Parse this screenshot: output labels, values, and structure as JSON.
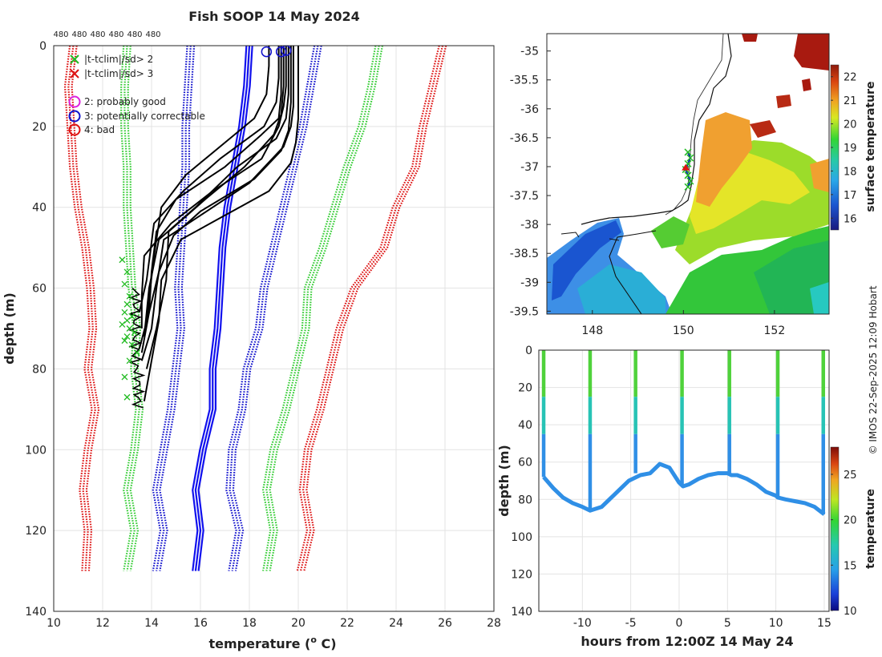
{
  "chart_data": [
    {
      "type": "line",
      "title": "Fish SOOP 14 May 2024",
      "xlabel": "temperature (",
      "xlabel_sup": "o",
      "xlabel_end": " C)",
      "ylabel": "depth (m)",
      "xlim": [
        10,
        28
      ],
      "ylim": [
        0,
        140
      ],
      "xticks": [
        10,
        12,
        14,
        16,
        18,
        20,
        22,
        24,
        26,
        28
      ],
      "yticks": [
        0,
        20,
        40,
        60,
        80,
        100,
        120,
        140
      ],
      "top_labels": [
        "480",
        "480",
        "480",
        "480",
        "480",
        "480"
      ],
      "legend_markers": [
        {
          "symbol": "x",
          "label": "|t-tclim|/sd> 2",
          "color": "#22bb22"
        },
        {
          "symbol": "x",
          "label": "|t-tclim|/sd> 3",
          "color": "#dd1111"
        }
      ],
      "legend_flags": [
        {
          "symbol": "o",
          "label": "2: probably good",
          "color": "#dd22dd"
        },
        {
          "symbol": "o",
          "label": "3: potentially correctable",
          "color": "#1111cc"
        },
        {
          "symbol": "o",
          "label": "4: bad",
          "color": "#dd1111"
        }
      ],
      "clim_depths": [
        0,
        10,
        20,
        30,
        40,
        50,
        60,
        70,
        80,
        90,
        100,
        110,
        120,
        130
      ],
      "climatology": [
        {
          "name": "mean-3sd",
          "color": "#dd1111",
          "style": "dotted",
          "values": [
            10.8,
            10.6,
            10.7,
            10.8,
            11.0,
            11.3,
            11.5,
            11.6,
            11.4,
            11.7,
            11.4,
            11.2,
            11.4,
            11.3
          ]
        },
        {
          "name": "mean-2sd",
          "color": "#33cc33",
          "style": "dotted",
          "values": [
            13.0,
            12.9,
            12.9,
            13.0,
            13.0,
            13.1,
            13.2,
            13.4,
            13.3,
            13.5,
            13.3,
            13.0,
            13.3,
            13.0
          ]
        },
        {
          "name": "mean-1sd",
          "color": "#1111cc",
          "style": "dotted",
          "values": [
            15.6,
            15.5,
            15.4,
            15.4,
            15.3,
            15.2,
            15.1,
            15.2,
            15.0,
            14.8,
            14.5,
            14.2,
            14.5,
            14.2
          ]
        },
        {
          "name": "mean",
          "color": "#1111ee",
          "style": "solid",
          "values": [
            18.0,
            17.9,
            17.7,
            17.4,
            17.1,
            16.9,
            16.8,
            16.7,
            16.5,
            16.5,
            16.1,
            15.8,
            16.0,
            15.8
          ]
        },
        {
          "name": "mean+1sd",
          "color": "#1111cc",
          "style": "dotted",
          "values": [
            20.8,
            20.5,
            20.2,
            19.8,
            19.4,
            19.0,
            18.6,
            18.4,
            17.9,
            17.7,
            17.3,
            17.2,
            17.6,
            17.3
          ]
        },
        {
          "name": "mean+2sd",
          "color": "#33cc33",
          "style": "dotted",
          "values": [
            23.3,
            23.0,
            22.6,
            22.0,
            21.5,
            21.0,
            20.4,
            20.3,
            19.9,
            19.5,
            19.0,
            18.7,
            19.0,
            18.7
          ]
        },
        {
          "name": "mean+3sd",
          "color": "#dd1111",
          "style": "dotted",
          "values": [
            25.9,
            25.5,
            25.1,
            24.8,
            24.0,
            23.5,
            22.3,
            21.7,
            21.3,
            20.9,
            20.4,
            20.2,
            20.5,
            20.1
          ]
        }
      ],
      "profiles": [
        {
          "temperature": [
            19.5,
            19.5,
            19.4,
            19.2,
            18.5,
            16.5,
            14.8,
            13.7,
            13.6,
            13.6
          ],
          "depth": [
            0,
            10,
            15,
            20,
            28,
            36,
            44,
            52,
            62,
            70
          ]
        },
        {
          "temperature": [
            19.3,
            19.3,
            19.2,
            18.5,
            17.0,
            15.0,
            14.2,
            14.0,
            13.9,
            13.5
          ],
          "depth": [
            0,
            12,
            18,
            22,
            30,
            38,
            46,
            56,
            66,
            75
          ]
        },
        {
          "temperature": [
            19.8,
            19.8,
            19.7,
            19.4,
            18.0,
            16.0,
            14.5,
            14.2,
            14.0,
            13.6
          ],
          "depth": [
            0,
            15,
            20,
            25,
            34,
            42,
            48,
            60,
            70,
            78
          ]
        },
        {
          "temperature": [
            18.8,
            18.8,
            18.7,
            18.2,
            17.0,
            15.4,
            14.4,
            14.1,
            13.8
          ],
          "depth": [
            0,
            5,
            12,
            18,
            24,
            32,
            40,
            52,
            68
          ]
        },
        {
          "temperature": [
            19.4,
            19.4,
            19.3,
            19.0,
            17.8,
            16.2,
            14.7,
            14.6,
            14.2,
            13.8
          ],
          "depth": [
            0,
            10,
            17,
            22,
            30,
            38,
            46,
            58,
            70,
            80
          ]
        },
        {
          "temperature": [
            20.0,
            20.0,
            19.9,
            19.7,
            18.8,
            17.0,
            15.2,
            14.4,
            14.3,
            14.0,
            13.7
          ],
          "depth": [
            0,
            18,
            24,
            29,
            36,
            42,
            48,
            58,
            68,
            78,
            88
          ]
        },
        {
          "temperature": [
            19.6,
            19.6,
            19.5,
            19.1,
            17.5,
            15.8,
            14.3,
            13.9,
            13.7
          ],
          "depth": [
            0,
            12,
            18,
            23,
            30,
            40,
            48,
            60,
            72
          ]
        },
        {
          "temperature": [
            19.2,
            19.2,
            19.1,
            18.6,
            16.8,
            15.3,
            14.1,
            13.8,
            13.5
          ],
          "depth": [
            0,
            8,
            14,
            20,
            28,
            36,
            44,
            58,
            66
          ]
        },
        {
          "temperature": [
            19.7,
            19.7,
            19.6,
            19.3,
            18.2,
            16.0,
            14.9,
            14.3,
            13.9,
            13.6
          ],
          "depth": [
            0,
            14,
            21,
            26,
            33,
            41,
            47,
            56,
            66,
            76
          ]
        }
      ],
      "flag_circles": [
        {
          "temperature": 18.7,
          "depth": 1.5
        },
        {
          "temperature": 19.3,
          "depth": 1.5
        },
        {
          "temperature": 19.5,
          "depth": 1.2
        }
      ],
      "flag_markers": {
        "temperature": [
          12.8,
          13.0,
          12.9,
          13.1,
          13.0,
          12.9,
          13.2,
          13.0,
          12.8,
          13.1,
          13.3,
          13.0,
          12.9,
          13.2,
          13.4,
          13.1,
          12.9,
          13.0
        ],
        "depth": [
          53,
          56,
          59,
          62,
          64,
          66,
          67,
          68,
          69,
          70,
          71,
          72,
          73,
          74,
          76,
          78,
          82,
          87
        ]
      }
    },
    {
      "type": "heatmap",
      "map": "surface temperature",
      "colorbar_label": "surface temperature",
      "xlim": [
        147,
        153.2
      ],
      "ylim": [
        -39.55,
        -34.7
      ],
      "xticks": [
        148,
        150,
        152
      ],
      "yticks": [
        -35,
        -35.5,
        -36,
        -36.5,
        -37,
        -37.5,
        -38,
        -38.5,
        -39,
        -39.5
      ],
      "clim": [
        15.5,
        22.5
      ],
      "cticks": [
        16,
        17,
        18,
        19,
        20,
        21,
        22
      ],
      "track": {
        "lon": [
          150.1,
          150.15,
          150.1,
          150.05,
          150.1,
          150.15,
          150.1
        ],
        "lat": [
          -36.75,
          -36.85,
          -36.95,
          -37.05,
          -37.15,
          -37.25,
          -37.35
        ]
      }
    },
    {
      "type": "scatter",
      "xlabel": "hours from 12:00Z 14 May 24",
      "ylabel": "depth (m)",
      "colorbar_label": "temperature",
      "xlim": [
        -14.5,
        15.5
      ],
      "ylim": [
        0,
        140
      ],
      "xticks": [
        -10,
        -5,
        0,
        5,
        10,
        15
      ],
      "yticks": [
        0,
        20,
        40,
        60,
        80,
        100,
        120,
        140
      ],
      "clim": [
        10,
        28
      ],
      "cticks": [
        10,
        15,
        20,
        25
      ],
      "bottom_track": {
        "hours": [
          -14,
          -13,
          -12,
          -11,
          -10,
          -9.2,
          -8,
          -7,
          -6,
          -5.2,
          -4,
          -3,
          -2,
          -1,
          0,
          0.4,
          1,
          2,
          3,
          4,
          5,
          5.4,
          6,
          7,
          8,
          9,
          10,
          10.2,
          11,
          12,
          13,
          14,
          15
        ],
        "depth": [
          68,
          74,
          79,
          82,
          84,
          86,
          84,
          79,
          74,
          70,
          67,
          66,
          61,
          63,
          71,
          73,
          72,
          69,
          67,
          66,
          66,
          67,
          67,
          69,
          72,
          76,
          78,
          79,
          80,
          81,
          82,
          84,
          88
        ]
      },
      "casts": [
        {
          "hours": -14.0,
          "max_depth": 68
        },
        {
          "hours": -9.2,
          "max_depth": 86
        },
        {
          "hours": -4.5,
          "max_depth": 66
        },
        {
          "hours": 0.3,
          "max_depth": 72
        },
        {
          "hours": 5.2,
          "max_depth": 66
        },
        {
          "hours": 10.2,
          "max_depth": 79
        },
        {
          "hours": 14.9,
          "max_depth": 88
        }
      ]
    }
  ],
  "credit": "© IMOS 22-Sep-2025 12:09 Hobart"
}
